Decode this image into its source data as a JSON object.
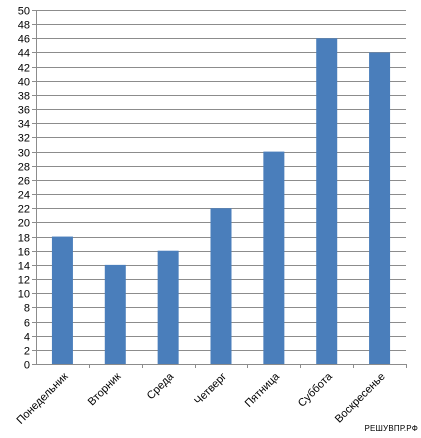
{
  "chart_data": {
    "type": "bar",
    "categories": [
      "Понедельник",
      "Вторник",
      "Среда",
      "Четверг",
      "Пятница",
      "Суббота",
      "Воскресенье"
    ],
    "values": [
      18,
      14,
      16,
      22,
      30,
      46,
      44
    ],
    "ylim": [
      0,
      50
    ],
    "ytick_step": 2,
    "grid": true,
    "bar_color": "#4a7ebb",
    "grid_color": "#8c8c8c"
  },
  "watermark": "РЕШУВПР.РФ"
}
